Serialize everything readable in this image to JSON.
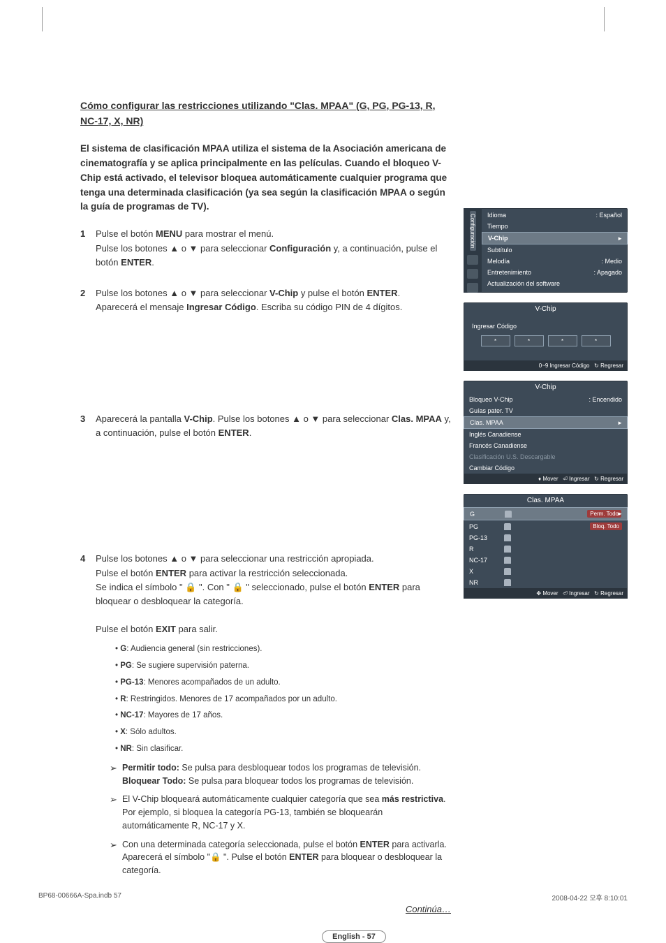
{
  "title": "Cómo configurar las restricciones utilizando \"Clas. MPAA\" (G, PG, PG-13, R, NC-17, X, NR)",
  "lead": "El sistema de clasificación MPAA utiliza el sistema de la Asociación americana de cinematografía y se aplica principalmente en las películas. Cuando el bloqueo V-Chip está activado, el televisor bloquea automáticamente cualquier programa que tenga una determinada clasificación (ya sea según la clasificación MPAA o según la guía de programas de TV).",
  "steps": {
    "n1": "1",
    "s1a": "Pulse el botón ",
    "s1b": "MENU",
    "s1c": " para mostrar el menú.",
    "s1d": "Pulse los botones ▲ o ▼ para seleccionar ",
    "s1e": "Configuración",
    "s1f": " y, a continuación, pulse el botón ",
    "s1g": "ENTER",
    "s1h": ".",
    "n2": "2",
    "s2a": "Pulse los botones ▲ o ▼ para seleccionar ",
    "s2b": "V-Chip",
    "s2c": " y pulse el botón ",
    "s2d": "ENTER",
    "s2e": ".",
    "s2f": "Aparecerá el mensaje ",
    "s2g": "Ingresar Código",
    "s2h": ". Escriba su código PIN de 4 dígitos.",
    "n3": "3",
    "s3a": "Aparecerá la pantalla  ",
    "s3b": "V-Chip",
    "s3c": ". Pulse los botones ▲ o ▼ para seleccionar ",
    "s3d": "Clas. MPAA",
    "s3e": " y, a continuación, pulse el botón ",
    "s3f": "ENTER",
    "s3g": ".",
    "n4": "4",
    "s4a": "Pulse los botones ▲ o ▼ para seleccionar una restricción apropiada.",
    "s4b": "Pulse el botón ",
    "s4c": "ENTER",
    "s4d": " para activar la restricción seleccionada.",
    "s4e": "Se indica el símbolo \" 🔒 \". Con \" 🔒 \" seleccionado, pulse el botón ",
    "s4f": "ENTER",
    "s4g": " para bloquear o desbloquear la categoría.",
    "s4h": "Pulse el botón ",
    "s4i": "EXIT",
    "s4j": " para salir."
  },
  "ratings": [
    {
      "k": "G",
      "d": ": Audiencia general (sin restricciones)."
    },
    {
      "k": "PG",
      "d": ": Se sugiere supervisión paterna."
    },
    {
      "k": "PG-13",
      "d": ": Menores acompañados de un adulto."
    },
    {
      "k": "R",
      "d": ": Restringidos. Menores de 17 acompañados por un adulto."
    },
    {
      "k": "NC-17",
      "d": ": Mayores de 17 años."
    },
    {
      "k": "X",
      "d": ": Sólo adultos."
    },
    {
      "k": "NR",
      "d": ": Sin clasificar."
    }
  ],
  "arrows": {
    "a1a": "Permitir todo: ",
    "a1b": "Se pulsa para desbloquear todos los programas de televisión.",
    "a1c": "Bloquear Todo: ",
    "a1d": "Se pulsa para bloquear todos los programas de televisión.",
    "a2a": "El V-Chip bloqueará automáticamente cualquier categoría que sea ",
    "a2b": "más restrictiva",
    "a2c": ". Por ejemplo, si bloquea la categoría PG-13, también se bloquearán automáticamente R, NC-17 y X.",
    "a3a": "Con una determinada categoría seleccionada, pulse el botón ",
    "a3b": "ENTER",
    "a3c": " para activarla. Aparecerá el símbolo \"🔒 \". Pulse el botón ",
    "a3d": "ENTER",
    "a3e": " para bloquear o desbloquear la categoría."
  },
  "continue": "Continúa…",
  "pager": "English - 57",
  "footer_l": "BP68-00666A-Spa.indb   57",
  "footer_r": "2008-04-22   오후 8:10:01",
  "osd1": {
    "tab": "Configuración",
    "rows": [
      {
        "l": "Idioma",
        "v": ": Español"
      },
      {
        "l": "Tiempo",
        "v": ""
      },
      {
        "l": "V-Chip",
        "v": "",
        "sel": true
      },
      {
        "l": "Subtítulo",
        "v": ""
      },
      {
        "l": "Melodía",
        "v": ": Medio"
      },
      {
        "l": "Entretenimiento",
        "v": ": Apagado"
      },
      {
        "l": "Actualización del software",
        "v": ""
      }
    ]
  },
  "osd2": {
    "hdr": "V-Chip",
    "label": "Ingresar Código",
    "dots": [
      "*",
      "*",
      "*",
      "*"
    ],
    "foot_a": "0~9 Ingresar Código",
    "foot_b": "↻ Regresar"
  },
  "osd3": {
    "hdr": "V-Chip",
    "rows": [
      {
        "l": "Bloqueo V-Chip",
        "v": ": Encendido"
      },
      {
        "l": "Guías pater. TV",
        "v": ""
      },
      {
        "l": "Clas. MPAA",
        "v": "",
        "sel": true
      },
      {
        "l": "Inglés Canadiense",
        "v": ""
      },
      {
        "l": "Francés Canadiense",
        "v": ""
      },
      {
        "l": "Clasificación U.S. Descargable",
        "v": "",
        "dim": true
      },
      {
        "l": "Cambiar Código",
        "v": ""
      }
    ],
    "foot_a": "♦ Mover",
    "foot_b": "⏎ Ingresar",
    "foot_c": "↻ Regresar"
  },
  "osd4": {
    "hdr": "Clas. MPAA",
    "btn1": "Perm. Todo",
    "btn2": "Bloq. Todo",
    "rows": [
      "G",
      "PG",
      "PG-13",
      "R",
      "NC-17",
      "X",
      "NR"
    ],
    "foot_a": "✥ Mover",
    "foot_b": "⏎ Ingresar",
    "foot_c": "↻ Regresar"
  }
}
